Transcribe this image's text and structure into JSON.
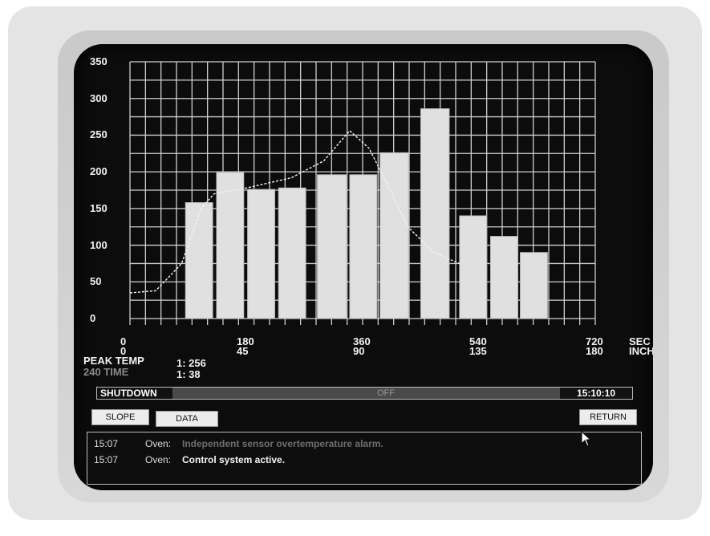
{
  "chart_data": {
    "type": "bar",
    "y_ticks": [
      "0",
      "50",
      "100",
      "150",
      "200",
      "250",
      "300",
      "350"
    ],
    "ylim": [
      0,
      350
    ],
    "xlim": [
      0,
      720
    ],
    "x_ticks": [
      {
        "sec": "0",
        "inch": "0",
        "value": 0
      },
      {
        "sec": "180",
        "inch": "45",
        "value": 180
      },
      {
        "sec": "360",
        "inch": "90",
        "value": 360
      },
      {
        "sec": "540",
        "inch": "135",
        "value": 540
      },
      {
        "sec": "720",
        "inch": "180",
        "value": 720
      }
    ],
    "x_unit_sec": "SEC",
    "x_unit_inch": "INCH",
    "bars": [
      {
        "x0": 86,
        "x1": 128,
        "value": 158
      },
      {
        "x0": 134,
        "x1": 176,
        "value": 199
      },
      {
        "x0": 182,
        "x1": 224,
        "value": 176
      },
      {
        "x0": 230,
        "x1": 272,
        "value": 178
      },
      {
        "x0": 290,
        "x1": 335,
        "value": 196
      },
      {
        "x0": 340,
        "x1": 382,
        "value": 196
      },
      {
        "x0": 387,
        "x1": 431,
        "value": 226
      },
      {
        "x0": 450,
        "x1": 494,
        "value": 286
      },
      {
        "x0": 510,
        "x1": 552,
        "value": 140
      },
      {
        "x0": 558,
        "x1": 600,
        "value": 112
      },
      {
        "x0": 604,
        "x1": 646,
        "value": 90
      }
    ],
    "temperature_line": {
      "x": [
        0,
        40,
        80,
        110,
        130,
        180,
        250,
        300,
        340,
        370,
        400,
        430,
        470,
        510
      ],
      "y": [
        35,
        38,
        75,
        150,
        170,
        178,
        192,
        215,
        256,
        232,
        180,
        125,
        90,
        75
      ]
    }
  },
  "peak": {
    "peak_temp_label": "PEAK TEMP",
    "peak_temp_value": "1: 256",
    "time_label": "240 TIME",
    "time_value": "1: 38"
  },
  "status": {
    "shutdown_label": "SHUTDOWN",
    "state": "OFF",
    "clock": "15:10:10"
  },
  "buttons": {
    "slope": "SLOPE",
    "data": "DATA",
    "return": "RETURN"
  },
  "messages": [
    {
      "time": "15:07",
      "source": "Oven:",
      "text": "Independent sensor overtemperature alarm."
    },
    {
      "time": "15:07",
      "source": "Oven:",
      "text": "Control system active."
    }
  ],
  "colors": {
    "screen": "#0c0c0c",
    "grid": "#dcdcdc",
    "bar": "#e2e2e2",
    "bezel": "#e4e4e4"
  }
}
